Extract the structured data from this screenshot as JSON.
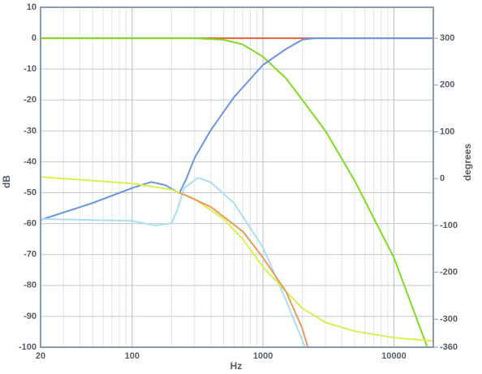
{
  "chart_data": {
    "type": "line",
    "x_label": "Hz",
    "y_label": "dB",
    "y2_label": "degrees",
    "xlog": true,
    "xlim": [
      20,
      20000
    ],
    "xticks": [
      20,
      100,
      1000,
      10000
    ],
    "xminorticks": [
      30,
      40,
      50,
      60,
      70,
      80,
      90,
      200,
      300,
      400,
      500,
      600,
      700,
      800,
      900,
      2000,
      3000,
      4000,
      5000,
      6000,
      7000,
      8000,
      9000
    ],
    "ylim": [
      -100,
      10
    ],
    "yticks": [
      10,
      0,
      -10,
      -20,
      -30,
      -40,
      -50,
      -60,
      -70,
      -80,
      -90,
      -100
    ],
    "y2lim": [
      -360,
      366
    ],
    "y2ticks": [
      300,
      200,
      100,
      0,
      -100,
      -200,
      -300,
      -360
    ],
    "grid": true,
    "series": [
      {
        "name": "red",
        "color": "#e8603c",
        "axis": "y",
        "x": [
          20,
          300,
          1000,
          2000,
          20000
        ],
        "values": [
          0,
          0,
          0,
          0,
          0
        ]
      },
      {
        "name": "green",
        "color": "#7fdc1f",
        "axis": "y",
        "x": [
          20,
          100,
          300,
          500,
          700,
          1000,
          1500,
          2000,
          3000,
          5000,
          10000,
          18000
        ],
        "values": [
          0,
          0,
          0,
          -0.5,
          -2,
          -6,
          -13,
          -20,
          -30,
          -46,
          -71,
          -100
        ]
      },
      {
        "name": "blue",
        "color": "#6a96e0",
        "axis": "y2",
        "x": [
          20,
          50,
          100,
          140,
          180,
          230,
          260,
          300,
          400,
          600,
          1000,
          1500,
          2000,
          2500,
          20000
        ],
        "values": [
          -88,
          -52,
          -20,
          -7,
          -14,
          -31,
          0,
          44,
          104,
          174,
          243,
          277,
          297,
          300,
          300
        ]
      },
      {
        "name": "light blue",
        "color": "#a9dff0",
        "axis": "y2",
        "x": [
          20,
          100,
          150,
          200,
          220,
          250,
          320,
          400,
          600,
          1000,
          1500,
          2100
        ],
        "values": [
          -86,
          -90,
          -100,
          -95,
          -69,
          -20,
          2,
          -8,
          -52,
          -147,
          -260,
          -360
        ]
      },
      {
        "name": "yellow",
        "color": "#d9f050",
        "axis": "y",
        "x": [
          20,
          100,
          200,
          300,
          500,
          700,
          1000,
          1500,
          2000,
          3000,
          5000,
          10000,
          20000
        ],
        "values": [
          -44.9,
          -47,
          -49,
          -52,
          -58.5,
          -65,
          -74,
          -82,
          -87.4,
          -92,
          -94.8,
          -96.9,
          -98
        ]
      },
      {
        "name": "orange",
        "color": "#e89a5c",
        "axis": "y",
        "x": [
          230,
          400,
          700,
          1000,
          1500,
          2000,
          2200
        ],
        "values": [
          -49.9,
          -54.6,
          -62.5,
          -71,
          -82,
          -94,
          -100
        ]
      }
    ]
  }
}
